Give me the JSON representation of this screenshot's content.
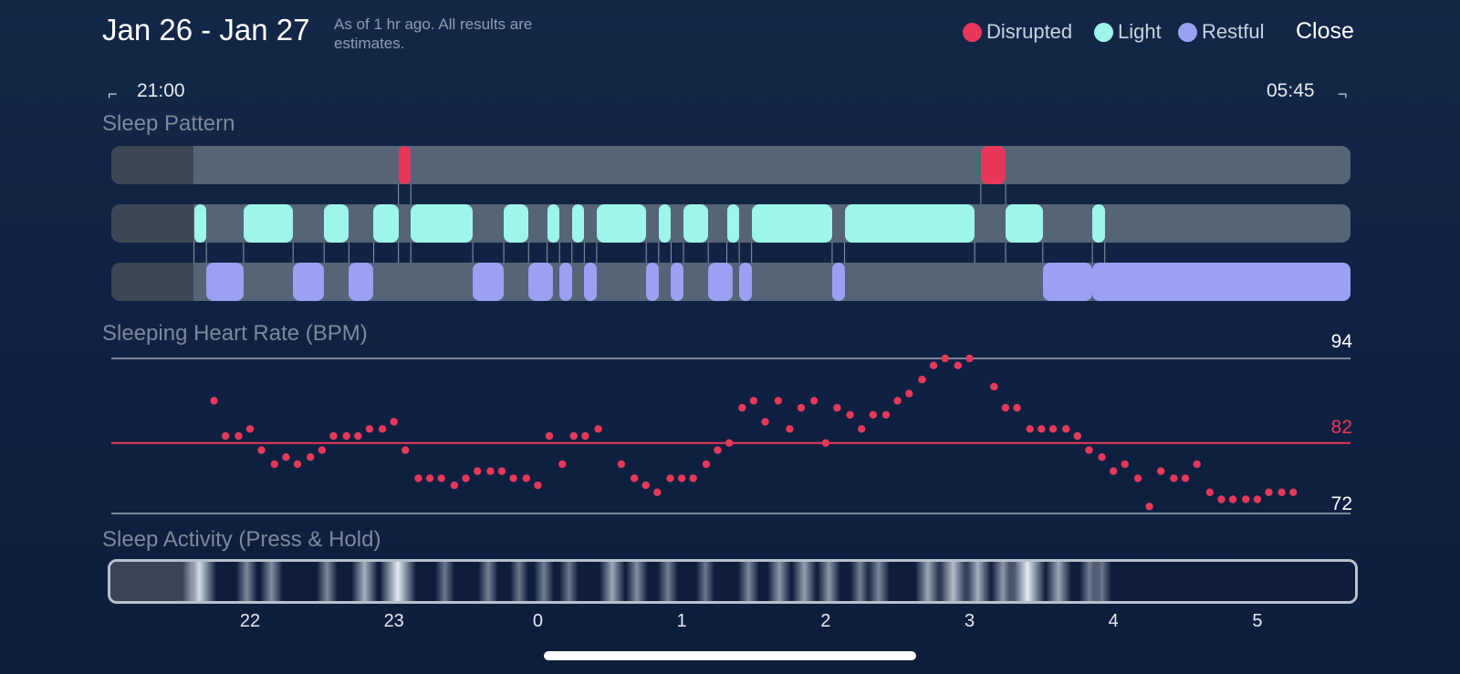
{
  "header": {
    "date_range": "Jan 26 - Jan 27",
    "note": "As of 1 hr ago. All results are estimates.",
    "close_label": "Close"
  },
  "legend": [
    {
      "label": "Disrupted",
      "color": "#e8385a"
    },
    {
      "label": "Light",
      "color": "#9ef5ea"
    },
    {
      "label": "Restful",
      "color": "#9aa0f2"
    }
  ],
  "time_range": {
    "start": "21:00",
    "end": "05:45"
  },
  "sleep_pattern": {
    "title": "Sleep Pattern",
    "disrupted": [
      [
        0.2317,
        0.2417
      ],
      [
        0.7017,
        0.7217
      ]
    ],
    "light": [
      [
        0.0667,
        0.0767
      ],
      [
        0.1067,
        0.1467
      ],
      [
        0.1717,
        0.1917
      ],
      [
        0.2117,
        0.2317
      ],
      [
        0.2417,
        0.2917
      ],
      [
        0.3167,
        0.3367
      ],
      [
        0.3517,
        0.3617
      ],
      [
        0.3717,
        0.3817
      ],
      [
        0.3917,
        0.4317
      ],
      [
        0.4417,
        0.4517
      ],
      [
        0.4617,
        0.4817
      ],
      [
        0.4967,
        0.5067
      ],
      [
        0.5167,
        0.5817
      ],
      [
        0.5917,
        0.6967
      ],
      [
        0.7217,
        0.7517
      ],
      [
        0.7917,
        0.8017
      ]
    ],
    "restful": [
      [
        0.0767,
        0.1067
      ],
      [
        0.1467,
        0.1717
      ],
      [
        0.1917,
        0.2117
      ],
      [
        0.2917,
        0.3167
      ],
      [
        0.3367,
        0.3567
      ],
      [
        0.3617,
        0.3717
      ],
      [
        0.3817,
        0.3917
      ],
      [
        0.4317,
        0.4417
      ],
      [
        0.4517,
        0.4617
      ],
      [
        0.4817,
        0.5017
      ],
      [
        0.5067,
        0.5167
      ],
      [
        0.5817,
        0.5917
      ],
      [
        0.7517,
        0.7917
      ],
      [
        0.7917,
        1.0
      ]
    ]
  },
  "heart_rate": {
    "title": "Sleeping Heart Rate (BPM)",
    "max_label": "94",
    "avg_label": "82",
    "min_label": "72",
    "y_max": 94,
    "y_avg": 82,
    "y_min": 72,
    "times": [
      21.75,
      21.83,
      21.92,
      22.0,
      22.08,
      22.17,
      22.25,
      22.33,
      22.42,
      22.5,
      22.58,
      22.67,
      22.75,
      22.83,
      22.92,
      23.0,
      23.08,
      23.17,
      23.25,
      23.33,
      23.42,
      23.5,
      23.58,
      23.67,
      23.75,
      23.83,
      23.92,
      24.0,
      24.08,
      24.17,
      24.25,
      24.33,
      24.42,
      24.5,
      24.58,
      24.67,
      24.75,
      24.83,
      24.92,
      25.0,
      25.08,
      25.17,
      25.25,
      25.33,
      25.42,
      25.5,
      25.58,
      25.67,
      25.75,
      25.83,
      25.92,
      26.0,
      26.08,
      26.17,
      26.25,
      26.33,
      26.42,
      26.5,
      26.58,
      26.67,
      26.75,
      26.83,
      26.92,
      27.0,
      27.08,
      27.17,
      27.25,
      27.33,
      27.42,
      27.5,
      27.58,
      27.67,
      27.75,
      27.83,
      27.92,
      28.0,
      28.08,
      28.17,
      28.25,
      28.33,
      28.42,
      28.5,
      28.58,
      28.67,
      28.75,
      28.83,
      28.92,
      29.0,
      29.08,
      29.17,
      29.25
    ],
    "bpm": [
      88,
      83,
      83,
      84,
      81,
      79,
      80,
      79,
      80,
      81,
      83,
      83,
      83,
      84,
      84,
      85,
      81,
      77,
      77,
      77,
      76,
      77,
      78,
      78,
      78,
      77,
      77,
      76,
      83,
      79,
      83,
      83,
      84,
      null,
      79,
      77,
      76,
      75,
      77,
      77,
      77,
      79,
      81,
      82,
      87,
      88,
      85,
      88,
      84,
      87,
      88,
      82,
      87,
      86,
      84,
      86,
      86,
      88,
      89,
      91,
      93,
      94,
      93,
      94,
      null,
      90,
      87,
      87,
      84,
      84,
      84,
      84,
      83,
      81,
      80,
      78,
      79,
      77,
      73,
      78,
      77,
      77,
      79,
      75,
      74,
      74,
      74,
      74,
      75,
      75,
      75
    ]
  },
  "activity": {
    "title": "Sleep Activity (Press & Hold)",
    "bands": [
      [
        0.072,
        0.9
      ],
      [
        0.11,
        0.35
      ],
      [
        0.13,
        0.4
      ],
      [
        0.175,
        0.35
      ],
      [
        0.205,
        0.6
      ],
      [
        0.232,
        1.0
      ],
      [
        0.27,
        0.25
      ],
      [
        0.305,
        0.3
      ],
      [
        0.33,
        0.25
      ],
      [
        0.35,
        0.3
      ],
      [
        0.37,
        0.25
      ],
      [
        0.405,
        0.55
      ],
      [
        0.425,
        0.4
      ],
      [
        0.45,
        0.3
      ],
      [
        0.48,
        0.25
      ],
      [
        0.515,
        0.35
      ],
      [
        0.54,
        0.45
      ],
      [
        0.56,
        0.5
      ],
      [
        0.58,
        0.45
      ],
      [
        0.605,
        0.3
      ],
      [
        0.62,
        0.35
      ],
      [
        0.66,
        0.55
      ],
      [
        0.68,
        0.7
      ],
      [
        0.7,
        0.6
      ],
      [
        0.72,
        0.45
      ],
      [
        0.74,
        1.0
      ],
      [
        0.765,
        0.55
      ],
      [
        0.79,
        0.3
      ],
      [
        0.8,
        0.25
      ]
    ]
  },
  "x_axis": {
    "ticks": [
      "22",
      "23",
      "0",
      "1",
      "2",
      "3",
      "4",
      "5"
    ],
    "tick_hours": [
      22,
      23,
      24,
      25,
      26,
      27,
      28,
      29
    ]
  }
}
